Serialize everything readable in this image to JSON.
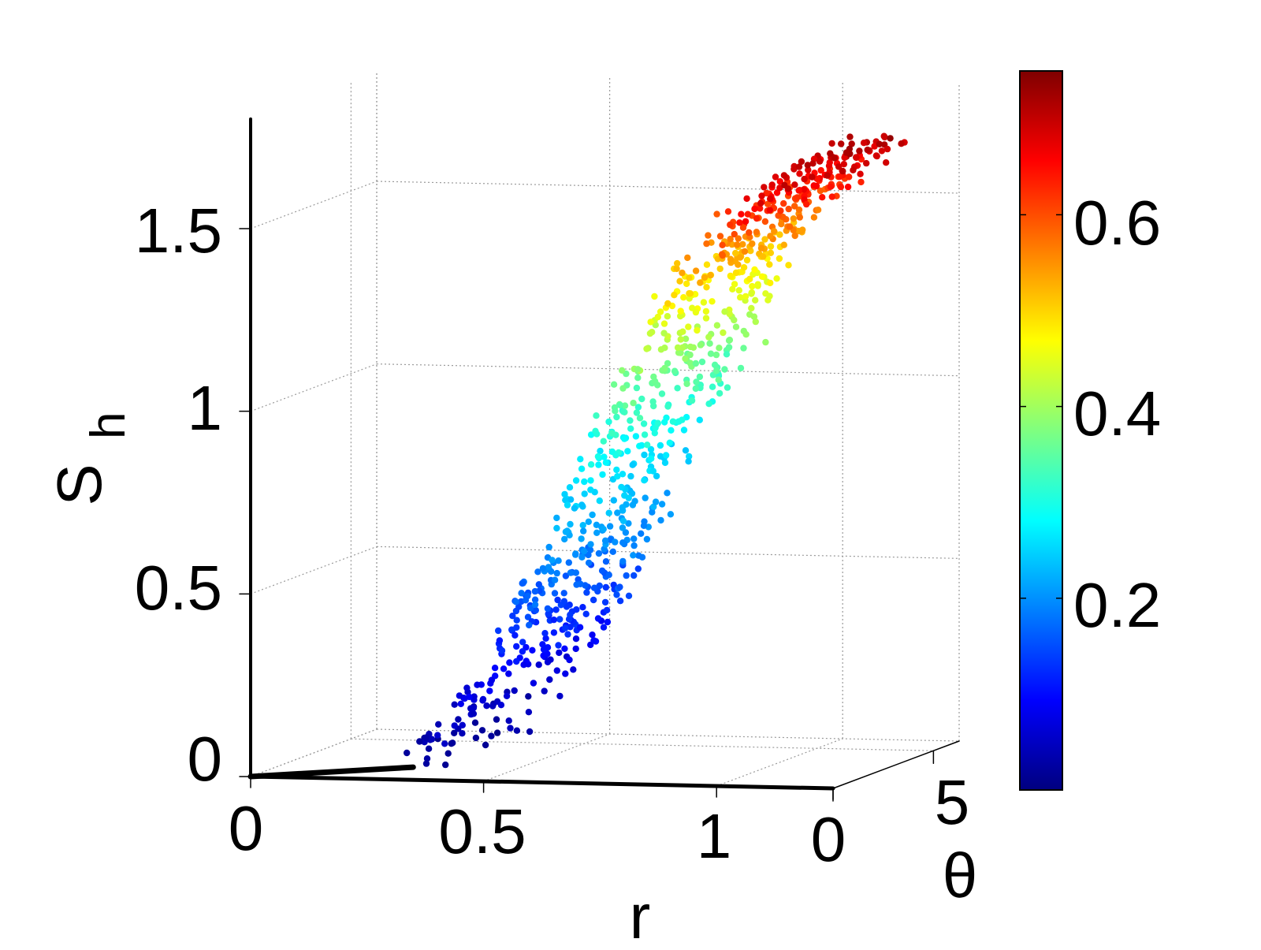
{
  "chart_data": {
    "type": "scatter",
    "projection": "3d",
    "title": "",
    "xlabel": "r",
    "ylabel": "θ",
    "zlabel_main": "S",
    "zlabel_sub": "h",
    "xlim": [
      0,
      1.25
    ],
    "ylim": [
      0,
      6.28
    ],
    "zlim": [
      0,
      1.8
    ],
    "x_ticks": [
      "0",
      "0.5",
      "1"
    ],
    "y_ticks": [
      "0",
      "5"
    ],
    "z_ticks": [
      "0",
      "0.5",
      "1",
      "1.5"
    ],
    "colorbar": {
      "colormap": "jet",
      "range": [
        0,
        0.75
      ],
      "ticks": [
        "0.2",
        "0.4",
        "0.6"
      ]
    },
    "grid": true,
    "series": [
      {
        "marker": "dot",
        "color_by": "colorbar value",
        "approx_point_count": 900,
        "trend": "S_h rises roughly linearly with r from about r = 0.28 to r = 1.2; colour value increases from about 0 to 0.75 along the cloud",
        "sample_points": [
          {
            "r": 0.3,
            "S_h": 0.02,
            "c": 0.01
          },
          {
            "r": 0.4,
            "S_h": 0.15,
            "c": 0.05
          },
          {
            "r": 0.5,
            "S_h": 0.3,
            "c": 0.1
          },
          {
            "r": 0.55,
            "S_h": 0.45,
            "c": 0.15
          },
          {
            "r": 0.62,
            "S_h": 0.6,
            "c": 0.2
          },
          {
            "r": 0.68,
            "S_h": 0.8,
            "c": 0.26
          },
          {
            "r": 0.75,
            "S_h": 1.0,
            "c": 0.33
          },
          {
            "r": 0.82,
            "S_h": 1.15,
            "c": 0.4
          },
          {
            "r": 0.88,
            "S_h": 1.32,
            "c": 0.48
          },
          {
            "r": 0.95,
            "S_h": 1.45,
            "c": 0.56
          },
          {
            "r": 1.05,
            "S_h": 1.58,
            "c": 0.65
          },
          {
            "r": 1.15,
            "S_h": 1.68,
            "c": 0.72
          }
        ]
      }
    ],
    "colors": {
      "axis": "#000000",
      "grid": "#9a9a9a"
    }
  }
}
